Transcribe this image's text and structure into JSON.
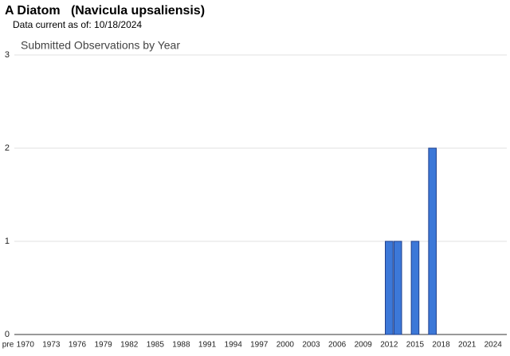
{
  "chart_data": {
    "type": "bar",
    "title": "A Diatom   (Navicula upsaliensis)",
    "subtitle": "Data current as of: 10/18/2024",
    "chart_title": "Submitted Observations by Year",
    "categories": [
      "pre",
      null,
      "1970",
      null,
      null,
      "1973",
      null,
      null,
      "1976",
      null,
      null,
      "1979",
      null,
      null,
      "1982",
      null,
      null,
      "1985",
      null,
      null,
      "1988",
      null,
      null,
      "1991",
      null,
      null,
      "1994",
      null,
      null,
      "1997",
      null,
      null,
      "2000",
      null,
      null,
      "2003",
      null,
      null,
      "2006",
      null,
      null,
      "2009",
      null,
      null,
      "2012",
      null,
      null,
      "2015",
      null,
      null,
      "2018",
      null,
      null,
      "2021",
      null,
      null,
      "2024"
    ],
    "values": [
      0,
      0,
      0,
      0,
      0,
      0,
      0,
      0,
      0,
      0,
      0,
      0,
      0,
      0,
      0,
      0,
      0,
      0,
      0,
      0,
      0,
      0,
      0,
      0,
      0,
      0,
      0,
      0,
      0,
      0,
      0,
      0,
      0,
      0,
      0,
      0,
      0,
      0,
      0,
      0,
      0,
      0,
      0,
      0,
      1,
      1,
      0,
      1,
      0,
      2,
      0,
      0,
      0,
      0,
      0,
      0,
      0
    ],
    "color": "#3c78d8",
    "ylim": [
      0,
      3
    ],
    "yticks": [
      0,
      1,
      2,
      3
    ],
    "grid": true
  }
}
